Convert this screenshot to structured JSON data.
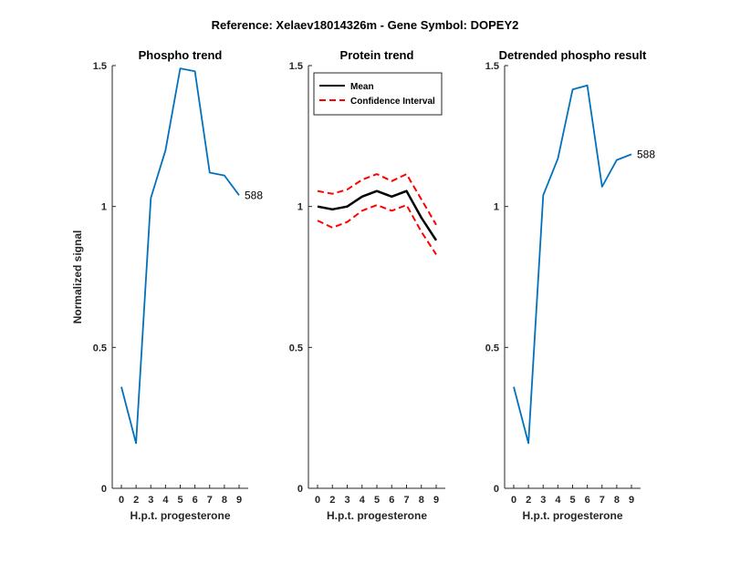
{
  "figure_title": "Reference:  Xelaev18014326m - Gene Symbol:  DOPEY2",
  "chart_data": [
    {
      "type": "line",
      "title": "Phospho trend",
      "xlabel": "H.p.t. progesterone",
      "ylabel": "Normalized signal",
      "x_ticks": [
        0,
        2,
        3,
        4,
        5,
        6,
        7,
        8,
        9
      ],
      "y_ticks": [
        0,
        0.5,
        1,
        1.5
      ],
      "y_tick_labels": [
        "0",
        "0.5",
        "1",
        "1.5"
      ],
      "ylim": [
        0,
        1.5
      ],
      "series": [
        {
          "values": [
            0.36,
            0.16,
            1.03,
            1.2,
            1.49,
            1.48,
            1.12,
            1.11,
            1.04
          ],
          "color": "#0072BD",
          "style": "solid"
        }
      ],
      "annotation": "588"
    },
    {
      "type": "line",
      "title": "Protein trend",
      "xlabel": "H.p.t. progesterone",
      "ylabel": "",
      "x_ticks": [
        0,
        2,
        3,
        4,
        5,
        6,
        7,
        8,
        9
      ],
      "y_ticks": [
        0,
        0.5,
        1,
        1.5
      ],
      "y_tick_labels": [
        "0",
        "0.5",
        "1",
        "1.5"
      ],
      "ylim": [
        0,
        1.5
      ],
      "legend_position": "top-left",
      "series": [
        {
          "name": "Mean",
          "values": [
            1.0,
            0.99,
            1.0,
            1.035,
            1.055,
            1.035,
            1.055,
            0.96,
            0.88
          ],
          "color": "#000000",
          "style": "solid"
        },
        {
          "name": "Confidence Interval",
          "values": [
            1.055,
            1.045,
            1.06,
            1.095,
            1.115,
            1.09,
            1.115,
            1.025,
            0.935
          ],
          "color": "#FF0000",
          "style": "dashed"
        },
        {
          "name": "Confidence Interval (lower)",
          "values": [
            0.95,
            0.925,
            0.945,
            0.985,
            1.005,
            0.985,
            1.005,
            0.91,
            0.83
          ],
          "color": "#FF0000",
          "style": "dashed",
          "in_legend": false
        }
      ]
    },
    {
      "type": "line",
      "title": "Detrended phospho result",
      "xlabel": "H.p.t. progesterone",
      "ylabel": "",
      "x_ticks": [
        0,
        2,
        3,
        4,
        5,
        6,
        7,
        8,
        9
      ],
      "y_ticks": [
        0,
        0.5,
        1,
        1.5
      ],
      "y_tick_labels": [
        "0",
        "0.5",
        "1",
        "1.5"
      ],
      "ylim": [
        0,
        1.5
      ],
      "series": [
        {
          "values": [
            0.36,
            0.16,
            1.04,
            1.17,
            1.415,
            1.43,
            1.07,
            1.165,
            1.185
          ],
          "color": "#0072BD",
          "style": "solid"
        }
      ],
      "annotation": "588"
    }
  ]
}
